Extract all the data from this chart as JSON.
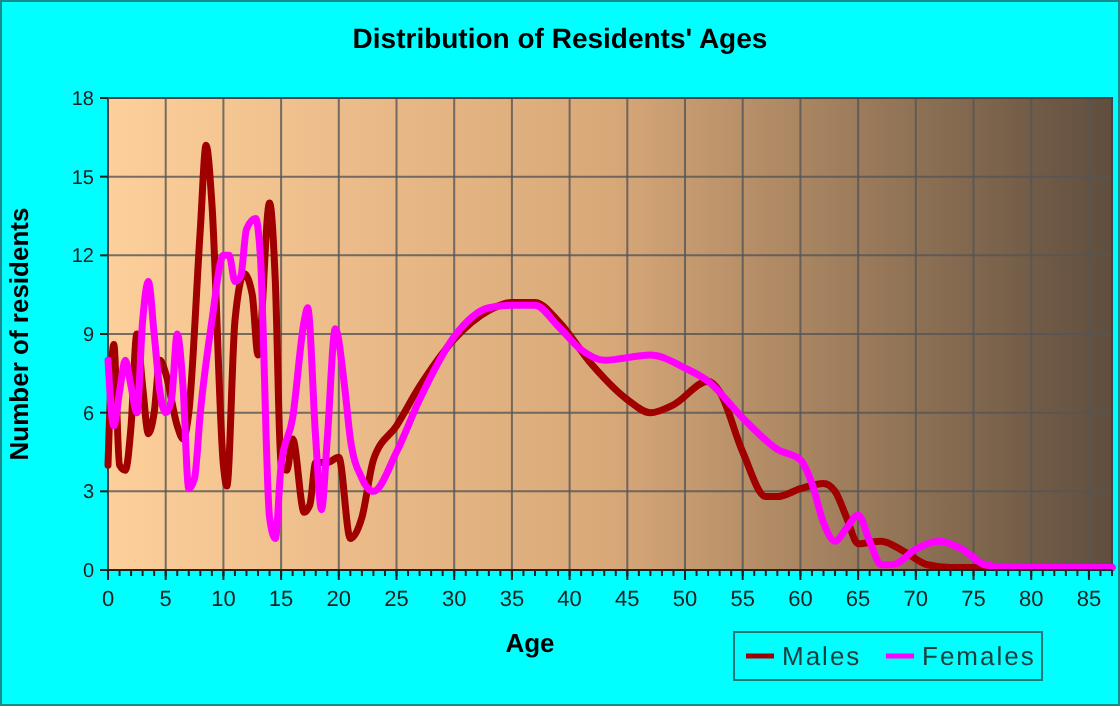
{
  "chart_data": {
    "type": "line",
    "title": "Distribution of Residents' Ages",
    "xlabel": "Age",
    "ylabel": "Number of residents",
    "xlim": [
      0,
      87
    ],
    "xticks": [
      0,
      5,
      10,
      15,
      20,
      25,
      30,
      35,
      40,
      45,
      50,
      55,
      60,
      65,
      70,
      75,
      80,
      85
    ],
    "ylim": [
      0,
      18
    ],
    "yticks": [
      0,
      3,
      6,
      9,
      12,
      15,
      18
    ],
    "grid": true,
    "legend": "bottom right",
    "line_style": "solid",
    "marker": "none",
    "series": [
      {
        "name": "Males",
        "color": "#a00000",
        "x": [
          0,
          0.5,
          1,
          1.5,
          2,
          2.5,
          3,
          3.5,
          4,
          4.5,
          5,
          6,
          6.5,
          7,
          8,
          8.5,
          9,
          10,
          10.3,
          11,
          11.8,
          12.5,
          13,
          14,
          14.5,
          15,
          15.5,
          16,
          17,
          17.5,
          18,
          19,
          20,
          21,
          22,
          23,
          25,
          27,
          30,
          33,
          35,
          37,
          39,
          42,
          45,
          47,
          49,
          52,
          53,
          55,
          57,
          58,
          60,
          62,
          63,
          64,
          65,
          67,
          69,
          71,
          73,
          75,
          80,
          87
        ],
        "values": [
          4,
          8.6,
          4,
          3.8,
          5.5,
          9,
          7,
          5.2,
          6,
          8,
          7.5,
          5.5,
          5,
          6,
          13,
          16.2,
          14,
          4,
          3.2,
          9.5,
          11.3,
          10.5,
          8.2,
          14,
          11,
          4,
          3.8,
          5,
          2.2,
          2.5,
          4.1,
          4.1,
          4.3,
          1.2,
          2,
          4.2,
          5.5,
          7,
          8.8,
          9.9,
          10.2,
          10.2,
          9.5,
          7.8,
          6.5,
          6,
          6.3,
          7.2,
          6.8,
          4.5,
          2.8,
          2.8,
          3.1,
          3.3,
          3,
          2,
          1,
          1.1,
          0.7,
          0.2,
          0.1,
          0.1,
          0.1,
          0.1
        ]
      },
      {
        "name": "Females",
        "color": "#ff00ff",
        "x": [
          0,
          0.5,
          1,
          1.5,
          2,
          2.5,
          3,
          3.5,
          4,
          4.5,
          5,
          5.5,
          6,
          6.5,
          7,
          7.5,
          8,
          9,
          10,
          10.5,
          11,
          11.5,
          12,
          12.8,
          13.2,
          14,
          14.5,
          15,
          16,
          17,
          17.3,
          18,
          18.5,
          19,
          19.7,
          20.5,
          21,
          22,
          23,
          25,
          27,
          30,
          33,
          35,
          37,
          39,
          41,
          43,
          47,
          50,
          52,
          55,
          58,
          60,
          61,
          62,
          63,
          64,
          65,
          66,
          67,
          68,
          70,
          72,
          74,
          76,
          78,
          87
        ],
        "values": [
          8,
          5.5,
          6.8,
          8,
          7,
          6,
          9.5,
          11,
          9,
          6.8,
          6,
          6.5,
          9,
          7,
          3.1,
          3.5,
          6,
          9.5,
          12,
          12,
          11,
          11.2,
          13,
          13.4,
          12,
          2,
          1.2,
          4,
          5.8,
          9.5,
          10,
          5,
          2.3,
          5,
          9.2,
          7,
          5,
          3.5,
          3,
          4.5,
          6.5,
          8.9,
          10,
          10.1,
          10.1,
          9.3,
          8.4,
          8,
          8.2,
          7.7,
          7.2,
          5.8,
          4.6,
          4.2,
          3.3,
          1.8,
          1.1,
          1.6,
          2.1,
          1.1,
          0.2,
          0.2,
          0.8,
          1.1,
          0.8,
          0.2,
          0.1,
          0.1
        ]
      }
    ]
  }
}
